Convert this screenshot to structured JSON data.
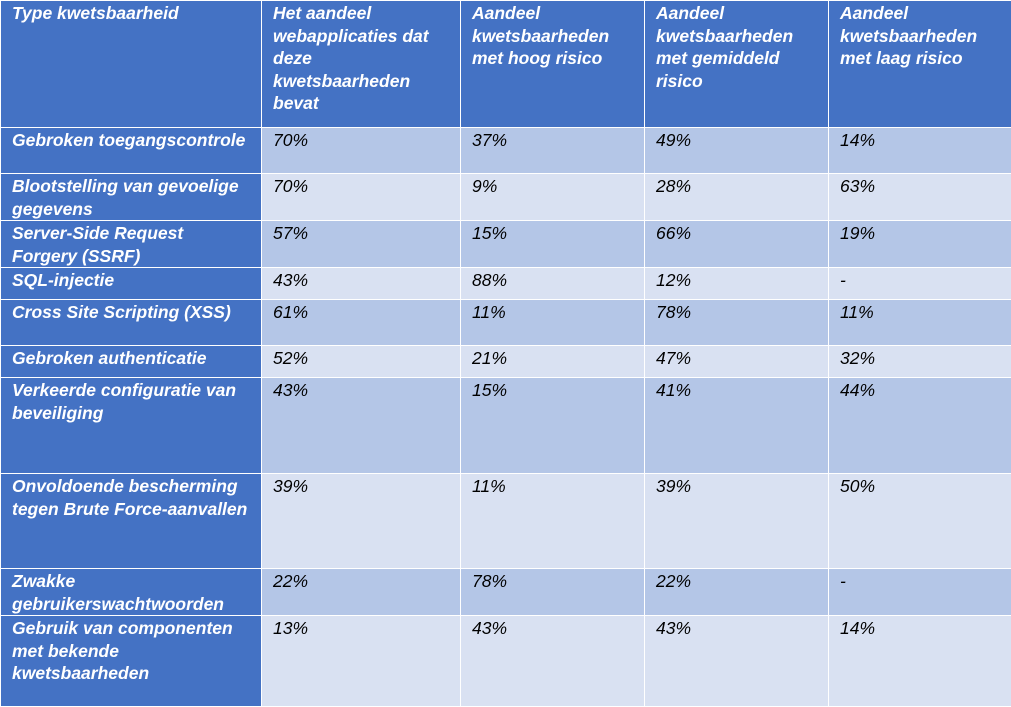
{
  "table": {
    "headers": [
      "Type kwetsbaarheid",
      "Het aandeel webapplicaties dat deze kwetsbaarheden bevat",
      "Aandeel kwetsbaarheden met hoog risico",
      "Aandeel kwetsbaarheden met gemiddeld risico",
      "Aandeel kwetsbaarheden met laag risico"
    ],
    "rows": [
      {
        "type": "Gebroken toegangscontrole",
        "apps": "70%",
        "high": "37%",
        "medium": "49%",
        "low": "14%"
      },
      {
        "type": "Blootstelling van gevoelige gegevens",
        "apps": "70%",
        "high": "9%",
        "medium": "28%",
        "low": "63%"
      },
      {
        "type": "Server-Side Request Forgery (SSRF)",
        "apps": "57%",
        "high": "15%",
        "medium": "66%",
        "low": "19%"
      },
      {
        "type": "SQL-injectie",
        "apps": "43%",
        "high": "88%",
        "medium": "12%",
        "low": "-"
      },
      {
        "type": "Cross Site Scripting (XSS)",
        "apps": "61%",
        "high": "11%",
        "medium": "78%",
        "low": "11%"
      },
      {
        "type": "Gebroken authenticatie",
        "apps": "52%",
        "high": "21%",
        "medium": "47%",
        "low": "32%"
      },
      {
        "type": "Verkeerde configuratie van beveiliging",
        "apps": "43%",
        "high": "15%",
        "medium": "41%",
        "low": "44%"
      },
      {
        "type": "Onvoldoende bescherming tegen Brute Force-aanvallen",
        "apps": "39%",
        "high": "11%",
        "medium": "39%",
        "low": "50%"
      },
      {
        "type": "Zwakke gebruikerswachtwoorden",
        "apps": "22%",
        "high": "78%",
        "medium": "22%",
        "low": "-"
      },
      {
        "type": "Gebruik van componenten met bekende kwetsbaarheden",
        "apps": "13%",
        "high": "43%",
        "medium": "43%",
        "low": "14%"
      }
    ]
  },
  "colors": {
    "header_bg": "#4472c4",
    "row_odd_bg": "#b4c6e7",
    "row_even_bg": "#d9e1f2",
    "header_text": "#ffffff",
    "cell_text": "#000000"
  }
}
